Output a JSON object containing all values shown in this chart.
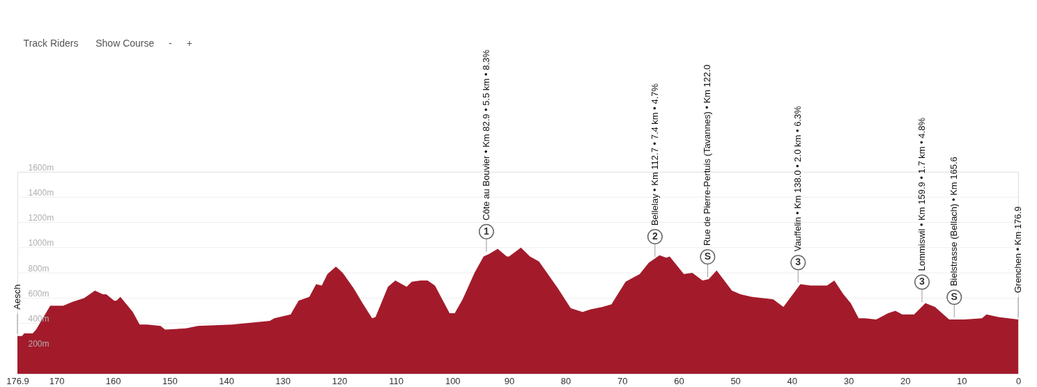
{
  "chart_data": {
    "type": "area",
    "color": "#a31b2b",
    "xlim": [
      176.9,
      0
    ],
    "xticks": [
      176.9,
      170,
      160,
      150,
      140,
      130,
      120,
      110,
      100,
      90,
      80,
      70,
      60,
      50,
      40,
      30,
      20,
      10,
      0
    ],
    "ylim": [
      0,
      1600
    ],
    "yticks": [
      {
        "value": 200,
        "label": "200m"
      },
      {
        "value": 400,
        "label": "400m"
      },
      {
        "value": 600,
        "label": "600m"
      },
      {
        "value": 800,
        "label": "800m"
      },
      {
        "value": 1000,
        "label": "1000m"
      },
      {
        "value": 1200,
        "label": "1200m"
      },
      {
        "value": 1400,
        "label": "1400m"
      },
      {
        "value": 1600,
        "label": "1600m"
      }
    ],
    "grid": "y",
    "x": [
      176.9,
      176.1,
      175.7,
      174.2,
      173.6,
      171.1,
      170,
      168.8,
      167.2,
      165.1,
      163.2,
      161.8,
      161.2,
      159.8,
      159.4,
      158.7,
      156.5,
      155.3,
      154,
      151.6,
      150.8,
      147.1,
      145,
      138.9,
      132.3,
      131.5,
      128.6,
      127.2,
      125.3,
      124.1,
      123.1,
      122.1,
      120.6,
      119.4,
      117.5,
      115.9,
      114.2,
      113.6,
      111.4,
      110.1,
      108.1,
      107.2,
      105.6,
      104.4,
      103.1,
      100.5,
      99.6,
      98.2,
      96.1,
      94.5,
      93.5,
      92,
      90.4,
      90,
      87.9,
      86.3,
      84.7,
      81.4,
      79.1,
      77,
      75.6,
      73.5,
      71.9,
      69.4,
      66.9,
      65.3,
      63.4,
      62.2,
      61.6,
      59.1,
      57.6,
      55.8,
      54.7,
      53.3,
      50.6,
      49.1,
      47.1,
      43.3,
      41.5,
      38.5,
      36.7,
      33.8,
      32.5,
      30.9,
      29.6,
      28.2,
      27.1,
      25.1,
      23,
      21.7,
      20.5,
      18.4,
      16.4,
      14.7,
      12.2,
      9.5,
      6.4,
      5.6,
      3.5,
      0
    ],
    "values": [
      300,
      300,
      320,
      320,
      350,
      540,
      540,
      540,
      570,
      600,
      660,
      630,
      630,
      580,
      580,
      610,
      490,
      390,
      390,
      380,
      350,
      360,
      380,
      390,
      420,
      440,
      470,
      580,
      610,
      710,
      700,
      790,
      850,
      800,
      680,
      560,
      440,
      450,
      690,
      740,
      690,
      730,
      740,
      740,
      700,
      480,
      480,
      590,
      800,
      930,
      950,
      990,
      930,
      930,
      1000,
      930,
      890,
      680,
      520,
      490,
      510,
      530,
      550,
      730,
      790,
      880,
      940,
      920,
      930,
      790,
      800,
      740,
      750,
      820,
      660,
      630,
      610,
      590,
      530,
      710,
      700,
      700,
      740,
      630,
      560,
      440,
      440,
      430,
      480,
      500,
      470,
      470,
      560,
      530,
      430,
      430,
      440,
      470,
      450,
      430
    ],
    "annotations": [
      "Track Riders",
      "Show Course",
      "-",
      "+",
      {
        "text": "Aesch",
        "x": 176.9,
        "y": 300
      },
      {
        "text": "Côte au Bouvier • Km 82.9 • 5.5 km • 8.3%",
        "x": 94.0,
        "y": 950
      },
      {
        "text": "1",
        "x": 94.0,
        "y": 950
      },
      {
        "text": "Bellelay • Km 112.7 • 7.4 km • 4.7%",
        "x": 64.2,
        "y": 910
      },
      {
        "text": "2",
        "x": 64.2,
        "y": 910
      },
      {
        "text": "Rue de Pierre-Pertuis (Tavannes) • Km 122.0",
        "x": 54.9,
        "y": 750
      },
      {
        "text": "S",
        "x": 54.9,
        "y": 750
      },
      {
        "text": "Vauffelin • Km 138.0 • 2.0 km • 6.3%",
        "x": 38.9,
        "y": 705
      },
      {
        "text": "3",
        "x": 38.9,
        "y": 705
      },
      {
        "text": "Lommiswil • Km 159.9 • 1.7 km • 4.8%",
        "x": 17.0,
        "y": 550
      },
      {
        "text": "3",
        "x": 17.0,
        "y": 550
      },
      {
        "text": "Bielstrasse (Bellach) • Km 165.6",
        "x": 11.3,
        "y": 430
      },
      {
        "text": "S",
        "x": 11.3,
        "y": 430
      },
      {
        "text": "Grenchen • Km 176.9",
        "x": 0,
        "y": 430
      }
    ]
  }
}
